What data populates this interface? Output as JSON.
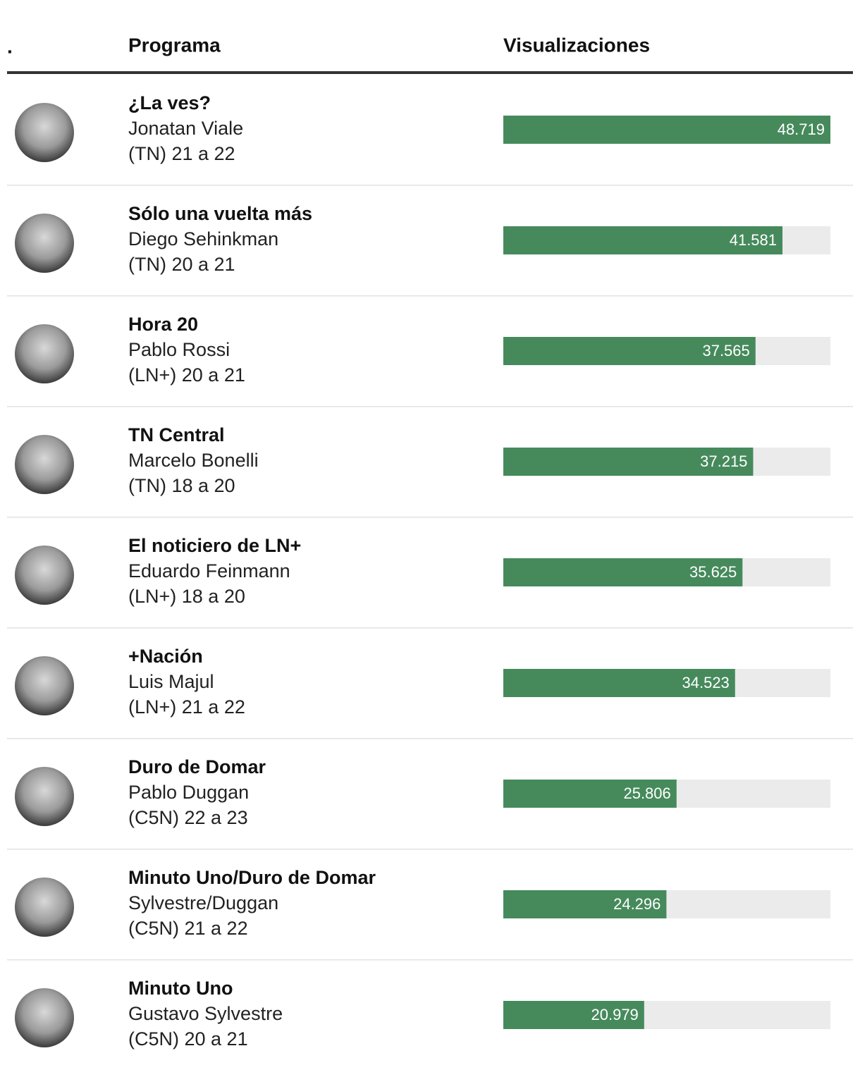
{
  "header": {
    "marker": ".",
    "columns": [
      "Programa",
      "Visualizaciones"
    ]
  },
  "bar_color": "#468a5c",
  "track_color": "#ebebeb",
  "rows": [
    {
      "program": "¿La ves?",
      "host": "Jonatan Viale",
      "schedule": "(TN) 21 a 22",
      "views": 48719,
      "views_label": "48.719"
    },
    {
      "program": "Sólo una vuelta más",
      "host": "Diego Sehinkman",
      "schedule": "(TN) 20 a 21",
      "views": 41581,
      "views_label": "41.581"
    },
    {
      "program": "Hora 20",
      "host": "Pablo Rossi",
      "schedule": "(LN+) 20 a 21",
      "views": 37565,
      "views_label": "37.565"
    },
    {
      "program": "TN Central",
      "host": "Marcelo Bonelli",
      "schedule": "(TN) 18 a 20",
      "views": 37215,
      "views_label": "37.215"
    },
    {
      "program": "El noticiero de LN+",
      "host": "Eduardo Feinmann",
      "schedule": "(LN+) 18 a 20",
      "views": 35625,
      "views_label": "35.625"
    },
    {
      "program": "+Nación",
      "host": "Luis Majul",
      "schedule": "(LN+) 21 a 22",
      "views": 34523,
      "views_label": "34.523"
    },
    {
      "program": "Duro de Domar",
      "host": "Pablo Duggan",
      "schedule": "(C5N) 22 a 23",
      "views": 25806,
      "views_label": "25.806"
    },
    {
      "program": "Minuto Uno/Duro de Domar",
      "host": "Sylvestre/Duggan",
      "schedule": "(C5N) 21 a 22",
      "views": 24296,
      "views_label": "24.296"
    },
    {
      "program": "Minuto Uno",
      "host": "Gustavo Sylvestre",
      "schedule": "(C5N) 20 a 21",
      "views": 20979,
      "views_label": "20.979"
    }
  ]
}
